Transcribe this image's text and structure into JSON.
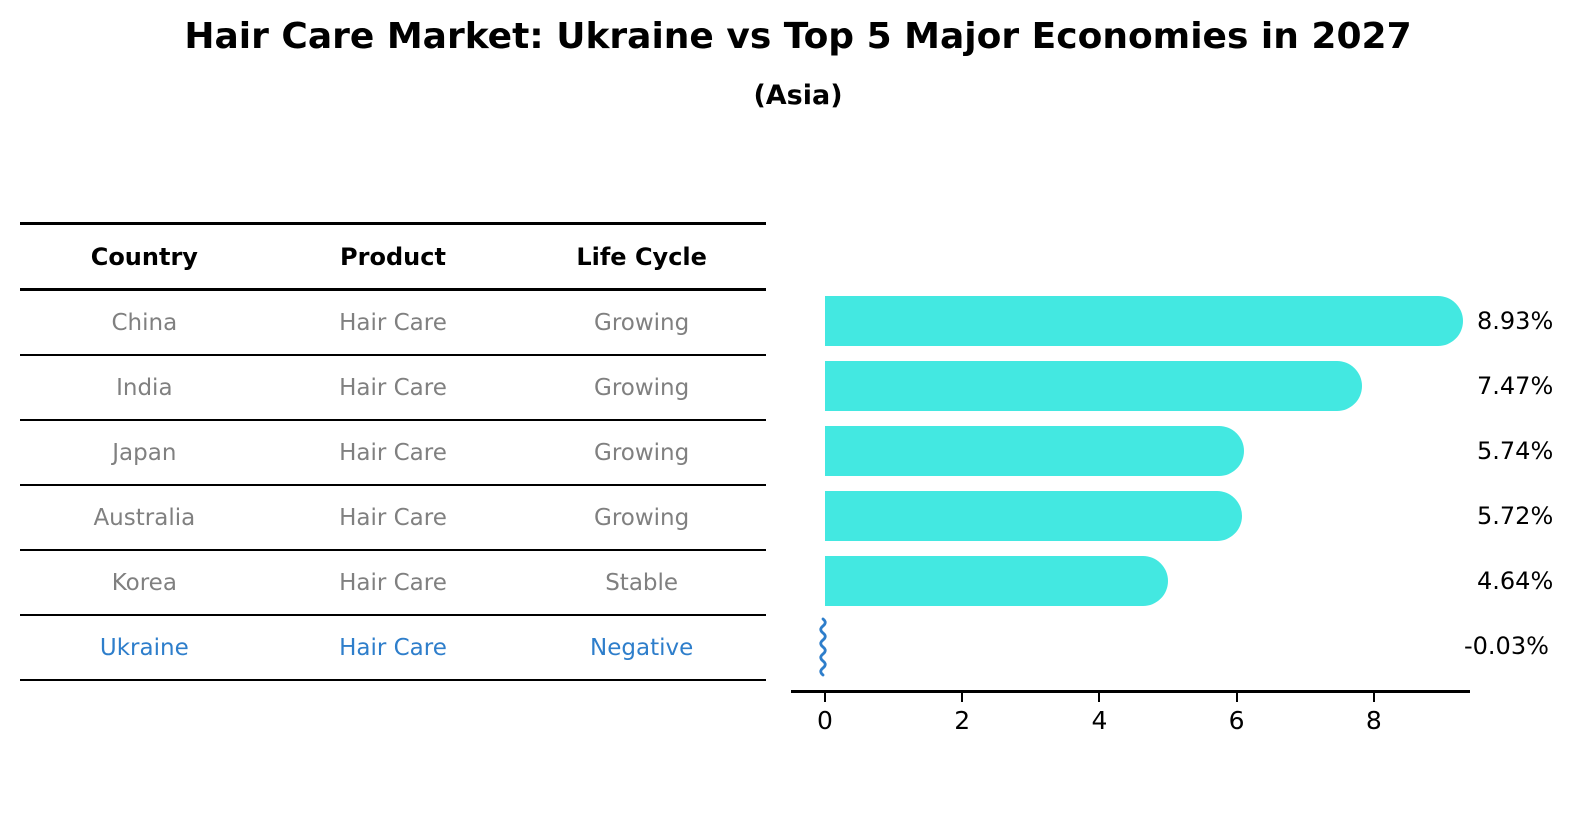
{
  "title": "Hair Care Market: Ukraine vs Top 5 Major Economies in 2027",
  "subtitle": "(Asia)",
  "table": {
    "headers": [
      "Country",
      "Product",
      "Life Cycle"
    ],
    "rows": [
      {
        "country": "China",
        "product": "Hair Care",
        "life_cycle": "Growing",
        "highlight": false
      },
      {
        "country": "India",
        "product": "Hair Care",
        "life_cycle": "Growing",
        "highlight": false
      },
      {
        "country": "Japan",
        "product": "Hair Care",
        "life_cycle": "Growing",
        "highlight": false
      },
      {
        "country": "Australia",
        "product": "Hair Care",
        "life_cycle": "Growing",
        "highlight": false
      },
      {
        "country": "Korea",
        "product": "Hair Care",
        "life_cycle": "Stable",
        "highlight": false
      },
      {
        "country": "Ukraine",
        "product": "Hair Care",
        "life_cycle": "Negative",
        "highlight": true
      }
    ]
  },
  "chart_data": {
    "type": "bar",
    "orientation": "horizontal",
    "title": "Hair Care Market: Ukraine vs Top 5 Major Economies in 2027 (Asia)",
    "categories": [
      "China",
      "India",
      "Japan",
      "Australia",
      "Korea",
      "Ukraine"
    ],
    "values": [
      8.93,
      7.47,
      5.74,
      5.72,
      4.64,
      -0.03
    ],
    "value_labels": [
      "8.93%",
      "7.47%",
      "5.74%",
      "5.72%",
      "4.64%",
      "-0.03%"
    ],
    "x_ticks": [
      0,
      2,
      4,
      6,
      8
    ],
    "xlim": [
      -0.5,
      9.4
    ],
    "grid": false,
    "legend": false,
    "bar_color": "#43e8e1",
    "highlight_color": "#2e7ecb",
    "axis_color": "#000000",
    "muted_text_color": "#808080"
  }
}
